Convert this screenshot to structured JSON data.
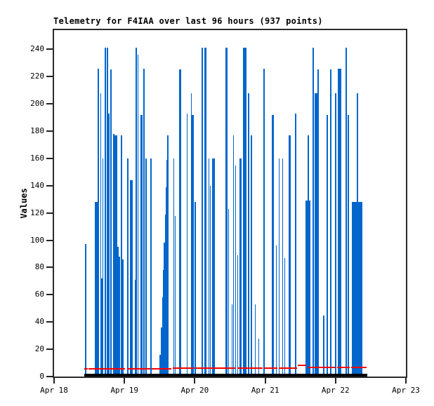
{
  "chart_data": {
    "type": "bar",
    "subtype": "impulse-time-series",
    "title": "Telemetry for F4IAA over last 96 hours (937 points)",
    "ylabel": "Values",
    "xlabel": "",
    "ylim": [
      0,
      254
    ],
    "y_ticks": [
      0,
      20,
      40,
      60,
      80,
      100,
      120,
      140,
      160,
      180,
      200,
      220,
      240
    ],
    "x_range_hours": [
      0,
      120
    ],
    "x_ticks": [
      {
        "hour": 0,
        "label": "Apr 18"
      },
      {
        "hour": 24,
        "label": "Apr 19"
      },
      {
        "hour": 48,
        "label": "Apr 20"
      },
      {
        "hour": 72,
        "label": "Apr 21"
      },
      {
        "hour": 96,
        "label": "Apr 22"
      },
      {
        "hour": 120,
        "label": "Apr 23"
      }
    ],
    "grid": false,
    "legend_position": "none",
    "colors": {
      "impulse": "#0066cc",
      "marker_line": "#ff0000",
      "baseline": "#000000",
      "frame": "#2b2b2b",
      "text": "#000000",
      "background": "#ffffff"
    },
    "series": [
      {
        "name": "telemetry-values",
        "style": "impulse",
        "color": "#0066cc",
        "points_format": [
          "hour",
          "value",
          "width_hours"
        ],
        "points": [
          [
            10.8,
            97,
            0.35
          ],
          [
            14.4,
            128,
            1.2
          ],
          [
            15.1,
            226,
            0.5
          ],
          [
            15.9,
            208,
            0.4
          ],
          [
            16.3,
            72,
            0.7
          ],
          [
            16.6,
            160,
            0.4
          ],
          [
            17.5,
            241,
            0.55
          ],
          [
            18.2,
            241,
            0.45
          ],
          [
            18.7,
            193,
            0.4
          ],
          [
            19.4,
            225,
            0.65
          ],
          [
            20.4,
            178,
            0.4
          ],
          [
            21.0,
            177,
            0.9
          ],
          [
            21.8,
            95,
            0.35
          ],
          [
            22.3,
            88,
            0.35
          ],
          [
            23.0,
            177,
            0.4
          ],
          [
            23.5,
            86,
            0.35
          ],
          [
            25.2,
            160,
            0.4
          ],
          [
            26.4,
            144,
            1.0
          ],
          [
            27.6,
            71,
            0.35
          ],
          [
            28.1,
            241,
            0.5
          ],
          [
            28.6,
            236,
            0.35
          ],
          [
            29.8,
            192,
            0.8
          ],
          [
            30.6,
            226,
            0.55
          ],
          [
            31.4,
            160,
            0.4
          ],
          [
            33.1,
            160,
            0.4
          ],
          [
            36.2,
            16,
            0.35
          ],
          [
            36.6,
            36,
            0.35
          ],
          [
            37.0,
            58,
            0.35
          ],
          [
            37.3,
            78,
            0.35
          ],
          [
            37.6,
            98,
            0.35
          ],
          [
            37.9,
            119,
            0.35
          ],
          [
            38.2,
            139,
            0.35
          ],
          [
            38.5,
            159,
            0.35
          ],
          [
            38.8,
            177,
            0.35
          ],
          [
            40.8,
            160,
            0.4
          ],
          [
            41.3,
            118,
            0.4
          ],
          [
            43.0,
            225,
            0.55
          ],
          [
            45.4,
            193,
            0.4
          ],
          [
            46.8,
            208,
            0.4
          ],
          [
            47.4,
            192,
            0.7
          ],
          [
            48.2,
            128,
            0.4
          ],
          [
            50.5,
            241,
            0.6
          ],
          [
            51.6,
            241,
            0.6
          ],
          [
            52.8,
            160,
            0.4
          ],
          [
            53.3,
            140,
            0.4
          ],
          [
            54.1,
            160,
            0.4
          ],
          [
            54.6,
            160,
            0.4
          ],
          [
            58.8,
            241,
            0.6
          ],
          [
            59.5,
            123,
            0.4
          ],
          [
            60.7,
            53,
            0.35
          ],
          [
            61.2,
            177,
            0.4
          ],
          [
            61.9,
            155,
            0.4
          ],
          [
            62.6,
            89,
            0.35
          ],
          [
            63.4,
            160,
            0.4
          ],
          [
            63.8,
            160,
            0.4
          ],
          [
            65.0,
            241,
            1.1
          ],
          [
            66.3,
            208,
            0.4
          ],
          [
            67.3,
            177,
            0.55
          ],
          [
            68.6,
            53,
            0.35
          ],
          [
            69.8,
            28,
            0.35
          ],
          [
            71.6,
            226,
            0.6
          ],
          [
            74.6,
            192,
            0.6
          ],
          [
            75.8,
            96,
            0.35
          ],
          [
            76.8,
            160,
            0.4
          ],
          [
            78.0,
            160,
            0.4
          ],
          [
            78.7,
            87,
            0.35
          ],
          [
            80.3,
            177,
            0.75
          ],
          [
            82.3,
            193,
            0.55
          ],
          [
            86.6,
            129,
            1.5
          ],
          [
            86.8,
            177,
            0.5
          ],
          [
            88.3,
            241,
            0.45
          ],
          [
            89.4,
            208,
            1.2
          ],
          [
            90.0,
            225,
            0.4
          ],
          [
            91.9,
            45,
            0.35
          ],
          [
            93.2,
            192,
            0.6
          ],
          [
            94.4,
            225,
            0.6
          ],
          [
            96.0,
            208,
            0.4
          ],
          [
            97.4,
            226,
            1.2
          ],
          [
            99.6,
            241,
            0.55
          ],
          [
            100.3,
            192,
            0.55
          ],
          [
            103.3,
            128,
            3.6
          ],
          [
            103.4,
            208,
            0.5
          ]
        ]
      },
      {
        "name": "telemetry-marker",
        "style": "line",
        "color": "#ff0000",
        "segments_format": [
          "hour_start",
          "hour_end",
          "value"
        ],
        "segments": [
          [
            10.3,
            11.4,
            5.5
          ],
          [
            11.8,
            24.3,
            5.5
          ],
          [
            24.8,
            32.9,
            5.5
          ],
          [
            33.4,
            40.0,
            5.5
          ],
          [
            40.4,
            47.9,
            6.0
          ],
          [
            48.4,
            61.9,
            6.0
          ],
          [
            62.4,
            71.2,
            6.0
          ],
          [
            71.7,
            76.2,
            6.0
          ],
          [
            76.7,
            82.9,
            6.0
          ],
          [
            83.0,
            86.1,
            8.0
          ],
          [
            86.4,
            95.9,
            6.5
          ],
          [
            96.4,
            100.9,
            6.5
          ],
          [
            101.4,
            106.6,
            6.5
          ]
        ]
      },
      {
        "name": "telemetry-baseline",
        "style": "line",
        "color": "#000000",
        "thickness_px": 4,
        "segments_format": [
          "hour_start",
          "hour_end",
          "value"
        ],
        "segments": [
          [
            10.3,
            106.8,
            0
          ]
        ]
      }
    ]
  }
}
